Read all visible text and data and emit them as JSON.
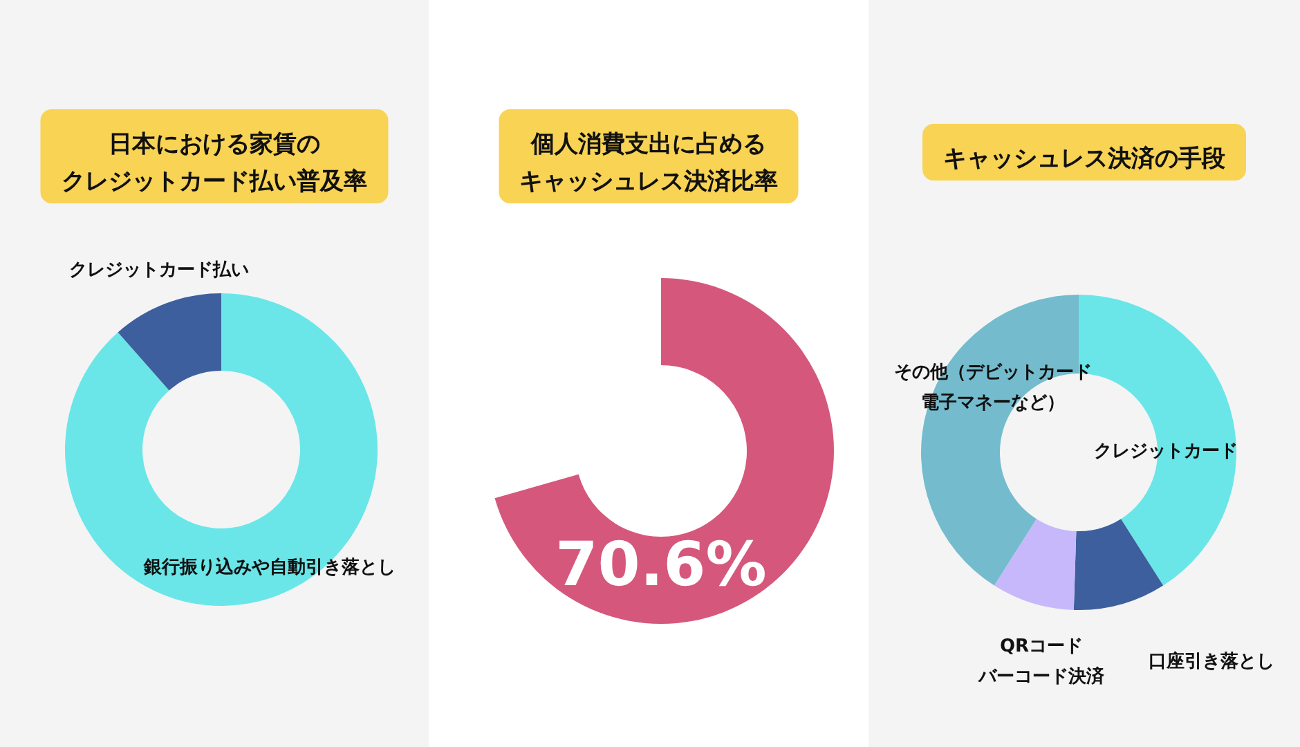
{
  "chart_data": [
    {
      "type": "donut",
      "title": "日本における家賃のクレジットカード払い普及率",
      "categories": [
        "銀行振り込みや自動引き落とし",
        "クレジットカード払い"
      ],
      "values": [
        88.5,
        11.5
      ],
      "colors": [
        "#6ae6e8",
        "#3d5f9e"
      ]
    },
    {
      "type": "pie",
      "title": "個人消費支出に占めるキャッシュレス決済比率",
      "categories": [
        null
      ],
      "values": [
        70.6
      ],
      "colors": [
        "#d5587c"
      ],
      "value_labels": [
        "70.6%"
      ]
    },
    {
      "type": "donut",
      "title": "キャッシュレス決済の手段",
      "categories": [
        "クレジットカード",
        "口座引き落とし",
        "QRコードバーコード決済",
        "その他（デビットカード電子マネーなど）"
      ],
      "values": [
        41,
        9.5,
        8.5,
        41
      ],
      "colors": [
        "#6ae6e8",
        "#3d5f9e",
        "#c7b8fb",
        "#74bccd"
      ]
    }
  ]
}
